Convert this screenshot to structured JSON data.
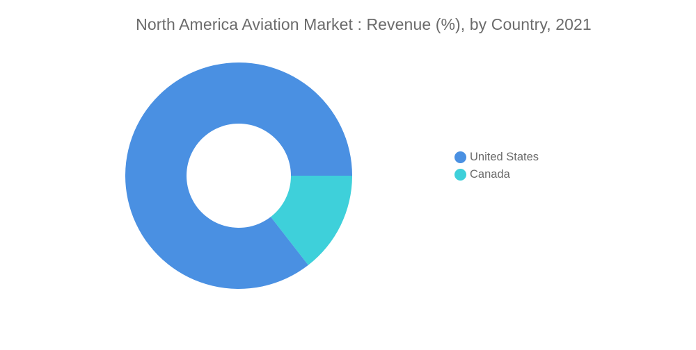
{
  "chart_data": {
    "type": "pie",
    "variant": "donut",
    "title": "North America Aviation Market : Revenue (%), by Country, 2021",
    "categories": [
      "United States",
      "Canada"
    ],
    "values": [
      85.5,
      14.5
    ],
    "colors": [
      "#4a90e2",
      "#3ed0da"
    ],
    "legend_position": "right"
  }
}
